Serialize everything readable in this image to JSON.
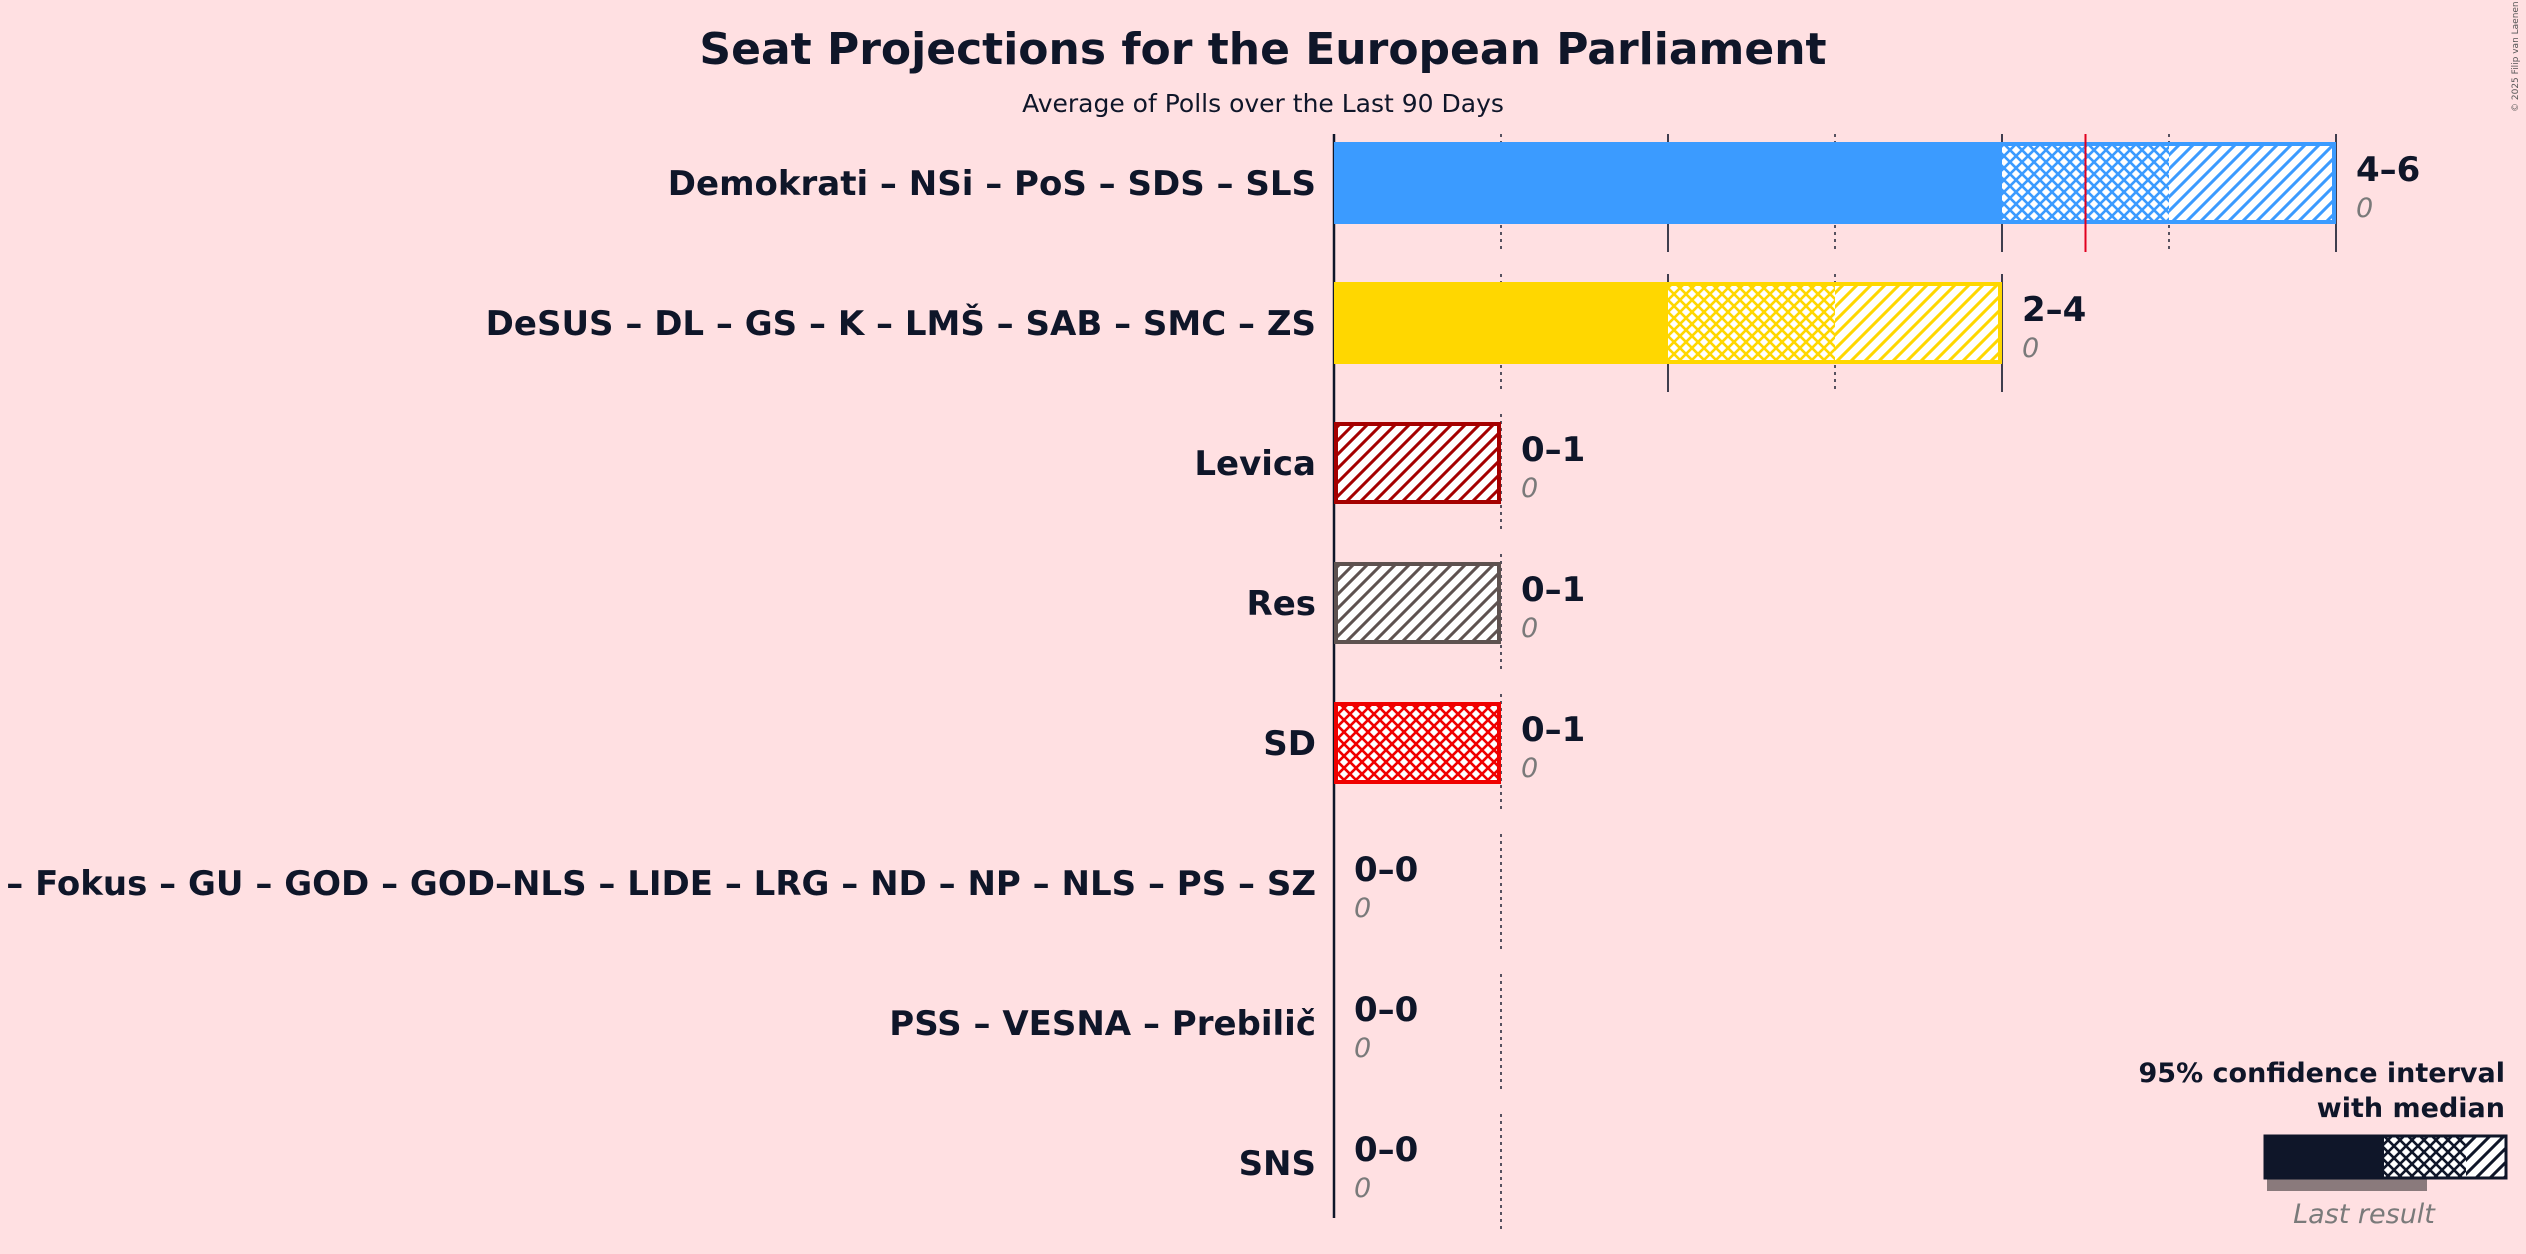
{
  "chart_data": {
    "type": "bar",
    "title": "Seat Projections for the European Parliament",
    "subtitle": "Average of Polls over the Last 90 Days",
    "xlim": [
      0,
      6
    ],
    "grid": true,
    "rows": [
      {
        "party": "Demokrati – NSi – PoS – SDS – SLS",
        "low": 4,
        "median": 4.5,
        "high": 6,
        "solid_to": 4,
        "cross_to": 5,
        "range": "4–6",
        "last_result": "0",
        "last_result_value": 0,
        "color": "#3B9BFF",
        "majority_line": 4.5
      },
      {
        "party": "DeSUS – DL – GS – K – LMŠ – SAB – SMC – ZS",
        "low": 2,
        "median": 3,
        "high": 4,
        "solid_to": 2,
        "cross_to": 3,
        "range": "2–4",
        "last_result": "0",
        "last_result_value": 0,
        "color": "#FFD700"
      },
      {
        "party": "Levica",
        "low": 0,
        "median": 0,
        "high": 1,
        "solid_to": 0,
        "cross_to": 0,
        "range": "0–1",
        "last_result": "0",
        "last_result_value": 0,
        "color": "#A50000"
      },
      {
        "party": "Res",
        "low": 0,
        "median": 0,
        "high": 1,
        "solid_to": 0,
        "cross_to": 0,
        "range": "0–1",
        "last_result": "0",
        "last_result_value": 0,
        "color": "#5E5250"
      },
      {
        "party": "SD",
        "low": 0,
        "median": 1,
        "high": 1,
        "solid_to": 0,
        "cross_to": 1,
        "range": "0–1",
        "last_result": "0",
        "last_result_value": 0,
        "color": "#F00000"
      },
      {
        "party": "DD – Fokus – GU – GOD – GOD–NLS – LIDE – LRG – ND – NP – NLS – PS – SZ",
        "low": 0,
        "median": 0,
        "high": 0,
        "solid_to": 0,
        "cross_to": 0,
        "range": "0–0",
        "last_result": "0",
        "last_result_value": 0,
        "color": "#888888"
      },
      {
        "party": "PSS – VESNA – Prebilič",
        "low": 0,
        "median": 0,
        "high": 0,
        "solid_to": 0,
        "cross_to": 0,
        "range": "0–0",
        "last_result": "0",
        "last_result_value": 0,
        "color": "#888888"
      },
      {
        "party": "SNS",
        "low": 0,
        "median": 0,
        "high": 0,
        "solid_to": 0,
        "cross_to": 0,
        "range": "0–0",
        "last_result": "0",
        "last_result_value": 0,
        "color": "#888888"
      }
    ],
    "legend": {
      "line1": "95% confidence interval",
      "line2": "with median",
      "last_result": "Last result",
      "color": "#0F1629",
      "last_color": "#8A7A7C"
    },
    "copyright": "© 2025 Filip van Laenen"
  }
}
